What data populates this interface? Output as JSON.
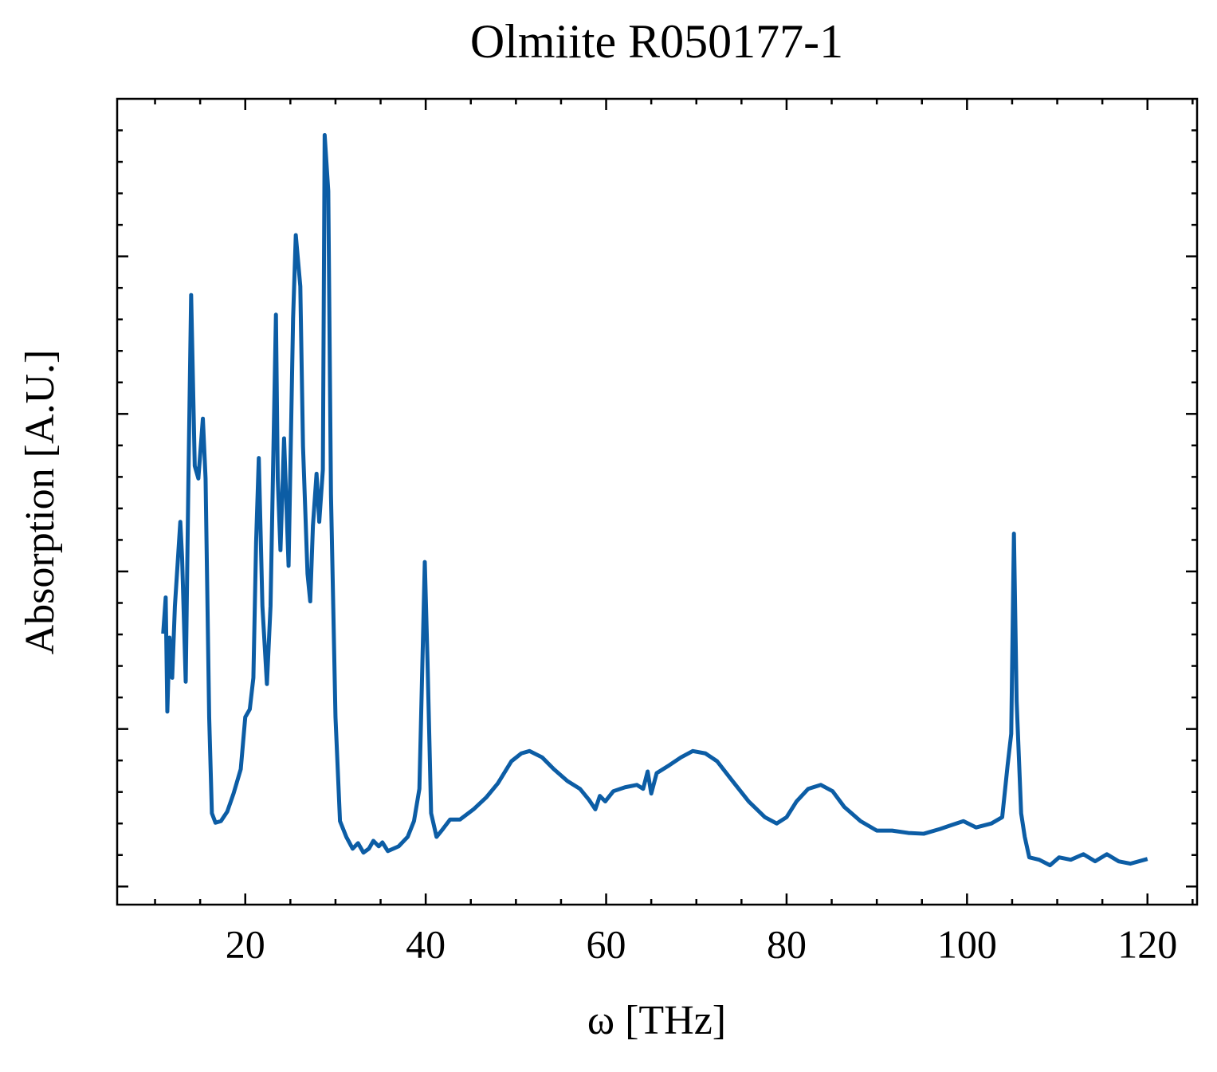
{
  "chart_data": {
    "type": "line",
    "title": "Olmiite R050177-1",
    "xlabel": "ω [THz]",
    "ylabel": "Absorption [A.U.]",
    "xlim": [
      5.8,
      125.5
    ],
    "ylim": [
      -0.023,
      1.0
    ],
    "xticks": [
      20,
      40,
      60,
      80,
      100,
      120
    ],
    "xminor_ticks": [
      10,
      15,
      25,
      30,
      35,
      45,
      50,
      55,
      65,
      70,
      75,
      85,
      90,
      95,
      105,
      110,
      115,
      125
    ],
    "yticks": [
      0,
      0.2,
      0.4,
      0.6,
      0.8
    ],
    "yminor_ticks": [
      0.04,
      0.08,
      0.12,
      0.16,
      0.24,
      0.28,
      0.32,
      0.36,
      0.44,
      0.48,
      0.52,
      0.56,
      0.64,
      0.68,
      0.72,
      0.76,
      0.84,
      0.88,
      0.92,
      0.96
    ],
    "ytick_labels": false,
    "grid": false,
    "color": "#0c5da5",
    "x": [
      10.9,
      11.18,
      11.36,
      11.6,
      11.9,
      12.2,
      12.8,
      13.0,
      13.4,
      13.7,
      14.0,
      14.4,
      14.8,
      15.3,
      15.6,
      16.0,
      16.3,
      16.7,
      17.3,
      18.0,
      18.7,
      19.5,
      20.0,
      20.5,
      20.9,
      21.2,
      21.5,
      21.9,
      22.4,
      22.8,
      23.4,
      23.6,
      23.9,
      24.3,
      24.8,
      25.3,
      25.6,
      26.1,
      26.4,
      26.9,
      27.2,
      27.5,
      27.9,
      28.2,
      28.6,
      28.8,
      29.2,
      29.5,
      30.0,
      30.5,
      31.2,
      31.9,
      32.5,
      33.1,
      33.7,
      34.2,
      34.8,
      35.2,
      35.8,
      37.0,
      38.0,
      38.7,
      39.3,
      39.9,
      40.2,
      40.6,
      41.2,
      41.9,
      42.7,
      43.8,
      45.3,
      46.7,
      48.0,
      49.5,
      50.6,
      51.5,
      52.9,
      54.2,
      55.7,
      57.1,
      58.1,
      58.8,
      59.3,
      59.9,
      60.8,
      62.1,
      63.4,
      64.1,
      64.6,
      65.0,
      65.6,
      67.0,
      68.3,
      69.6,
      71.0,
      72.3,
      74.0,
      75.8,
      77.6,
      78.9,
      80.0,
      81.1,
      82.4,
      83.8,
      85.1,
      86.4,
      88.2,
      90.0,
      91.7,
      93.5,
      95.2,
      97.0,
      98.3,
      99.6,
      101.0,
      102.7,
      103.9,
      104.5,
      104.9,
      105.2,
      105.5,
      106.0,
      106.4,
      106.9,
      108.0,
      109.2,
      110.2,
      111.5,
      112.9,
      114.2,
      115.5,
      116.8,
      118.1,
      120.0
    ],
    "values": [
      0.321,
      0.367,
      0.222,
      0.316,
      0.265,
      0.356,
      0.463,
      0.417,
      0.26,
      0.518,
      0.751,
      0.534,
      0.518,
      0.594,
      0.518,
      0.215,
      0.093,
      0.081,
      0.083,
      0.095,
      0.118,
      0.149,
      0.215,
      0.225,
      0.265,
      0.437,
      0.544,
      0.356,
      0.257,
      0.356,
      0.726,
      0.518,
      0.427,
      0.569,
      0.407,
      0.721,
      0.827,
      0.762,
      0.559,
      0.397,
      0.362,
      0.458,
      0.524,
      0.463,
      0.529,
      0.954,
      0.883,
      0.498,
      0.215,
      0.083,
      0.063,
      0.048,
      0.055,
      0.043,
      0.048,
      0.058,
      0.051,
      0.056,
      0.045,
      0.051,
      0.063,
      0.083,
      0.124,
      0.412,
      0.286,
      0.093,
      0.063,
      0.073,
      0.085,
      0.085,
      0.098,
      0.113,
      0.131,
      0.159,
      0.169,
      0.172,
      0.164,
      0.149,
      0.134,
      0.124,
      0.11,
      0.098,
      0.115,
      0.108,
      0.121,
      0.126,
      0.129,
      0.124,
      0.146,
      0.118,
      0.144,
      0.154,
      0.164,
      0.172,
      0.169,
      0.159,
      0.134,
      0.108,
      0.088,
      0.08,
      0.088,
      0.108,
      0.124,
      0.129,
      0.121,
      0.101,
      0.083,
      0.071,
      0.071,
      0.068,
      0.067,
      0.073,
      0.078,
      0.083,
      0.075,
      0.08,
      0.088,
      0.154,
      0.194,
      0.448,
      0.235,
      0.093,
      0.063,
      0.037,
      0.034,
      0.027,
      0.037,
      0.034,
      0.041,
      0.032,
      0.041,
      0.032,
      0.029,
      0.035
    ]
  }
}
